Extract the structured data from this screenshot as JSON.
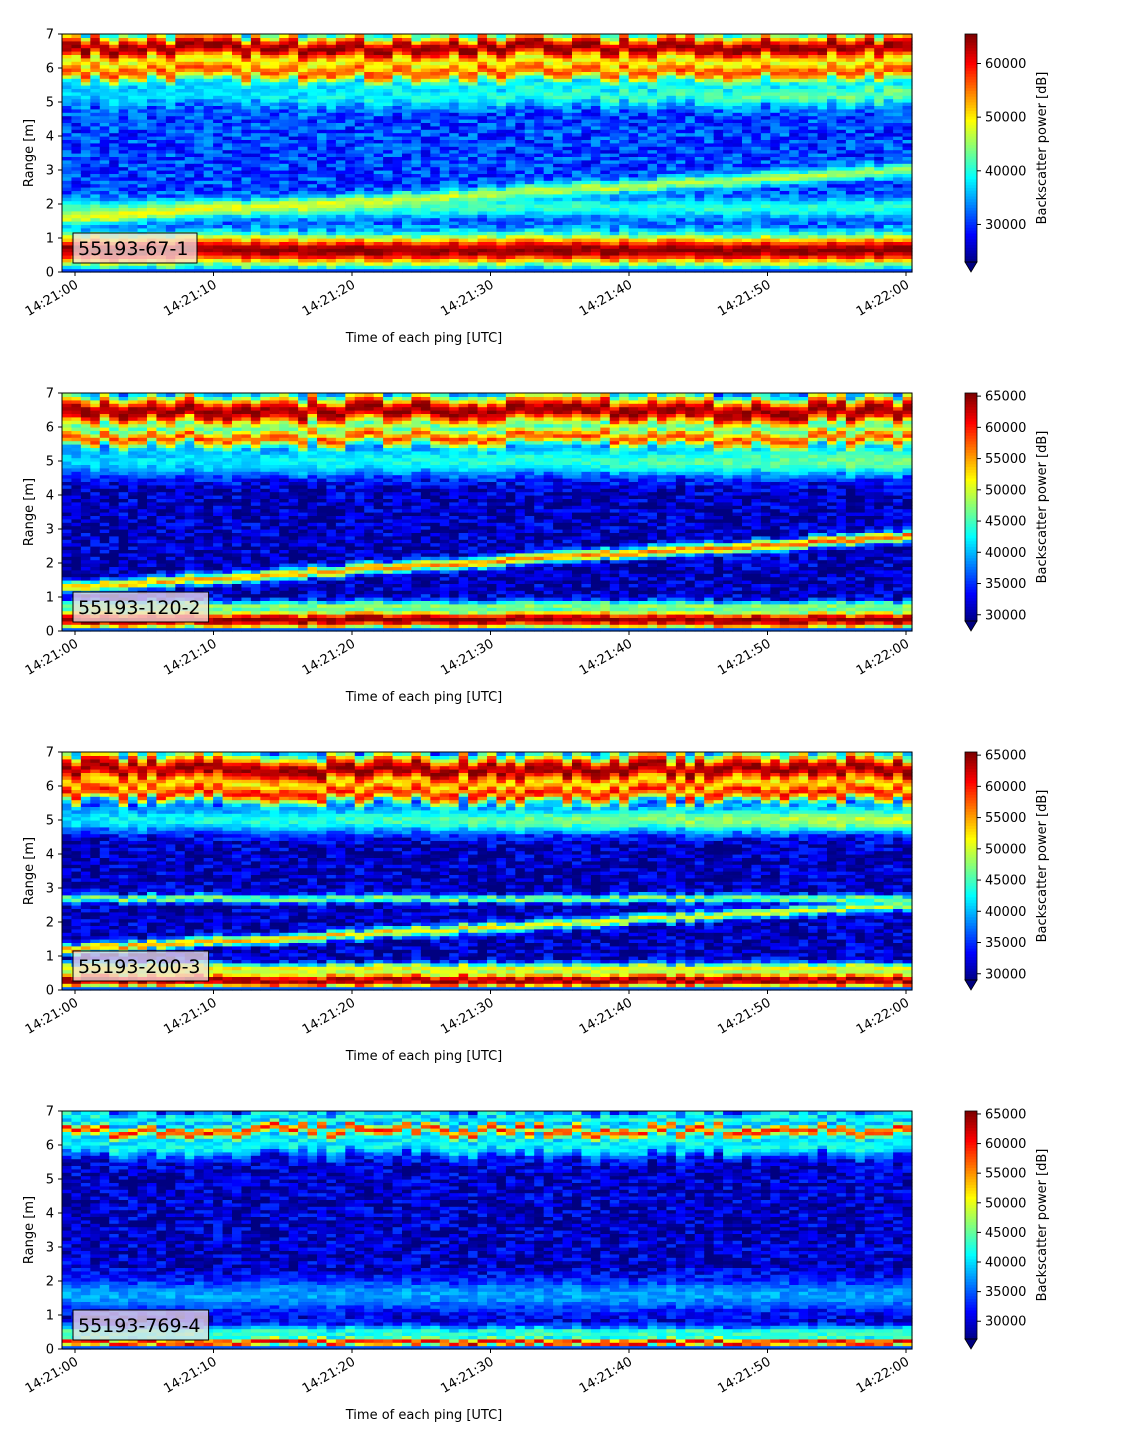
{
  "chart_data": [
    {
      "type": "heatmap",
      "label": "55193-67-1",
      "xlabel": "Time of each ping [UTC]",
      "ylabel": "Range [m]",
      "x_ticks": [
        "14:21:00",
        "14:21:10",
        "14:21:20",
        "14:21:30",
        "14:21:40",
        "14:21:50",
        "14:22:00"
      ],
      "y_ticks": [
        0,
        1,
        2,
        3,
        4,
        5,
        6,
        7
      ],
      "ylim": [
        0,
        7
      ],
      "colorbar_label": "Backscatter power [dB]",
      "colorbar_ticks": [
        30000,
        40000,
        50000,
        60000
      ],
      "clim": [
        23000,
        65500
      ],
      "bands": [
        {
          "center": 0.65,
          "width": 0.55,
          "start": 65000,
          "end": 65000
        },
        {
          "center": 1.9,
          "width": 0.35,
          "start": 41000,
          "end": 41000
        },
        {
          "center": 1.6,
          "end_center": 3.0,
          "width": 0.25,
          "start": 49000,
          "end": 46000
        },
        {
          "center": 5.2,
          "width": 0.4,
          "start": 37000,
          "end": 44000
        },
        {
          "center": 5.9,
          "width": 0.35,
          "start": 57000,
          "end": 57000
        },
        {
          "center": 6.6,
          "width": 0.5,
          "start": 65000,
          "end": 65000
        }
      ]
    },
    {
      "type": "heatmap",
      "label": "55193-120-2",
      "xlabel": "Time of each ping [UTC]",
      "ylabel": "Range [m]",
      "x_ticks": [
        "14:21:00",
        "14:21:10",
        "14:21:20",
        "14:21:30",
        "14:21:40",
        "14:21:50",
        "14:22:00"
      ],
      "y_ticks": [
        0,
        1,
        2,
        3,
        4,
        5,
        6,
        7
      ],
      "ylim": [
        0,
        7
      ],
      "colorbar_label": "Backscatter power [dB]",
      "colorbar_ticks": [
        30000,
        35000,
        40000,
        45000,
        50000,
        55000,
        60000,
        65000
      ],
      "clim": [
        29000,
        65500
      ],
      "bands": [
        {
          "center": 0.35,
          "width": 0.35,
          "start": 65000,
          "end": 65000
        },
        {
          "center": 0.75,
          "width": 0.2,
          "start": 48000,
          "end": 48000
        },
        {
          "center": 1.3,
          "end_center": 2.8,
          "width": 0.2,
          "start": 54000,
          "end": 58000
        },
        {
          "center": 5.0,
          "width": 0.6,
          "start": 41000,
          "end": 47000
        },
        {
          "center": 5.7,
          "width": 0.3,
          "start": 58000,
          "end": 58000
        },
        {
          "center": 6.5,
          "width": 0.6,
          "start": 65000,
          "end": 65000
        }
      ]
    },
    {
      "type": "heatmap",
      "label": "55193-200-3",
      "xlabel": "Time of each ping [UTC]",
      "ylabel": "Range [m]",
      "x_ticks": [
        "14:21:00",
        "14:21:10",
        "14:21:20",
        "14:21:30",
        "14:21:40",
        "14:21:50",
        "14:22:00"
      ],
      "y_ticks": [
        0,
        1,
        2,
        3,
        4,
        5,
        6,
        7
      ],
      "ylim": [
        0,
        7
      ],
      "colorbar_label": "Backscatter power [dB]",
      "colorbar_ticks": [
        30000,
        35000,
        40000,
        45000,
        50000,
        55000,
        60000,
        65000
      ],
      "clim": [
        29000,
        65500
      ],
      "bands": [
        {
          "center": 0.3,
          "width": 0.3,
          "start": 65000,
          "end": 65000
        },
        {
          "center": 0.65,
          "width": 0.2,
          "start": 52000,
          "end": 52000
        },
        {
          "center": 2.7,
          "width": 0.15,
          "start": 48000,
          "end": 48000
        },
        {
          "center": 1.2,
          "end_center": 2.5,
          "width": 0.18,
          "start": 56000,
          "end": 50000
        },
        {
          "center": 5.0,
          "width": 0.5,
          "start": 42000,
          "end": 50000
        },
        {
          "center": 5.8,
          "width": 0.35,
          "start": 60000,
          "end": 60000
        },
        {
          "center": 6.5,
          "width": 0.6,
          "start": 65000,
          "end": 65000
        }
      ]
    },
    {
      "type": "heatmap",
      "label": "55193-769-4",
      "xlabel": "Time of each ping [UTC]",
      "ylabel": "Range [m]",
      "x_ticks": [
        "14:21:00",
        "14:21:10",
        "14:21:20",
        "14:21:30",
        "14:21:40",
        "14:21:50",
        "14:22:00"
      ],
      "y_ticks": [
        0,
        1,
        2,
        3,
        4,
        5,
        6,
        7
      ],
      "ylim": [
        0,
        7
      ],
      "colorbar_label": "Backscatter power [dB]",
      "colorbar_ticks": [
        30000,
        35000,
        40000,
        45000,
        50000,
        55000,
        60000,
        65000
      ],
      "clim": [
        27000,
        65500
      ],
      "bands": [
        {
          "center": 0.22,
          "width": 0.15,
          "start": 65000,
          "end": 65000
        },
        {
          "center": 0.5,
          "width": 0.25,
          "start": 44000,
          "end": 44000
        },
        {
          "center": 1.6,
          "width": 0.6,
          "start": 38000,
          "end": 38000
        },
        {
          "center": 6.0,
          "width": 0.4,
          "start": 42000,
          "end": 42000
        },
        {
          "center": 6.45,
          "width": 0.2,
          "start": 60000,
          "end": 60000
        },
        {
          "center": 6.85,
          "width": 0.25,
          "start": 43000,
          "end": 43000
        }
      ]
    }
  ]
}
